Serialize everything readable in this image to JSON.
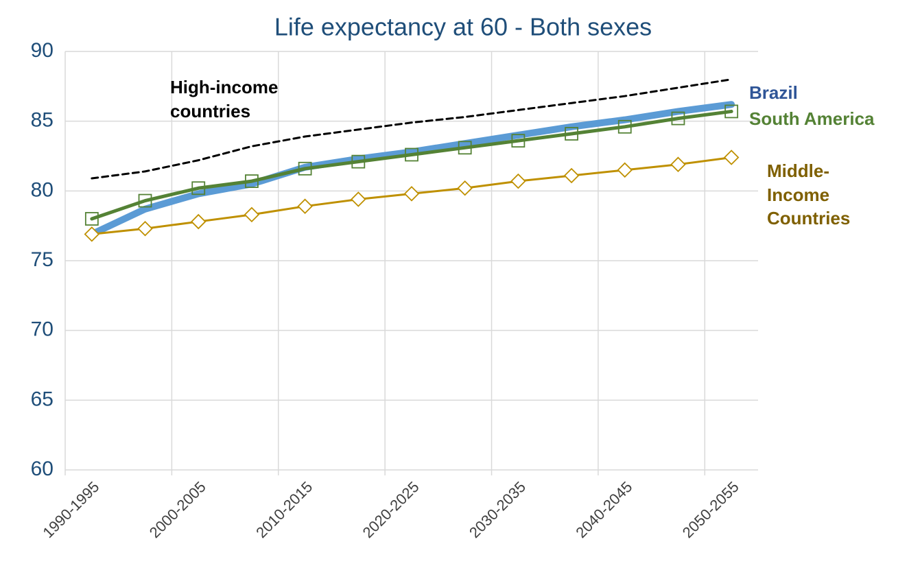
{
  "chart_data": {
    "type": "line",
    "title": "Life expectancy at 60 - Both sexes",
    "categories": [
      "1990-1995",
      null,
      "2000-2005",
      null,
      "2010-2015",
      null,
      "2020-2025",
      null,
      "2030-2035",
      null,
      "2040-2045",
      null,
      "2050-2055"
    ],
    "series": [
      {
        "name": "High-income countries",
        "color": "#000000",
        "dash": true,
        "marker": null,
        "values": [
          80.9,
          81.4,
          82.2,
          83.2,
          83.9,
          84.4,
          84.9,
          85.3,
          85.8,
          86.3,
          86.8,
          87.4,
          88.0
        ]
      },
      {
        "name": "Brazil",
        "color": "#5b9bd5",
        "marker": null,
        "values": [
          76.9,
          78.7,
          79.8,
          80.5,
          81.7,
          82.3,
          82.8,
          83.4,
          84.0,
          84.6,
          85.1,
          85.7,
          86.2
        ]
      },
      {
        "name": "South America",
        "color": "#548235",
        "marker": "square",
        "values": [
          78.0,
          79.3,
          80.2,
          80.7,
          81.6,
          82.1,
          82.6,
          83.1,
          83.6,
          84.1,
          84.6,
          85.2,
          85.7
        ]
      },
      {
        "name": "Middle-Income Countries",
        "color": "#bf9000",
        "marker": "diamond",
        "values": [
          76.9,
          77.3,
          77.8,
          78.3,
          78.9,
          79.4,
          79.8,
          80.2,
          80.7,
          81.1,
          81.5,
          81.9,
          82.4
        ]
      }
    ],
    "ylim": [
      60,
      90
    ],
    "yticks": [
      60,
      65,
      70,
      75,
      80,
      85,
      90
    ],
    "grid": true
  }
}
